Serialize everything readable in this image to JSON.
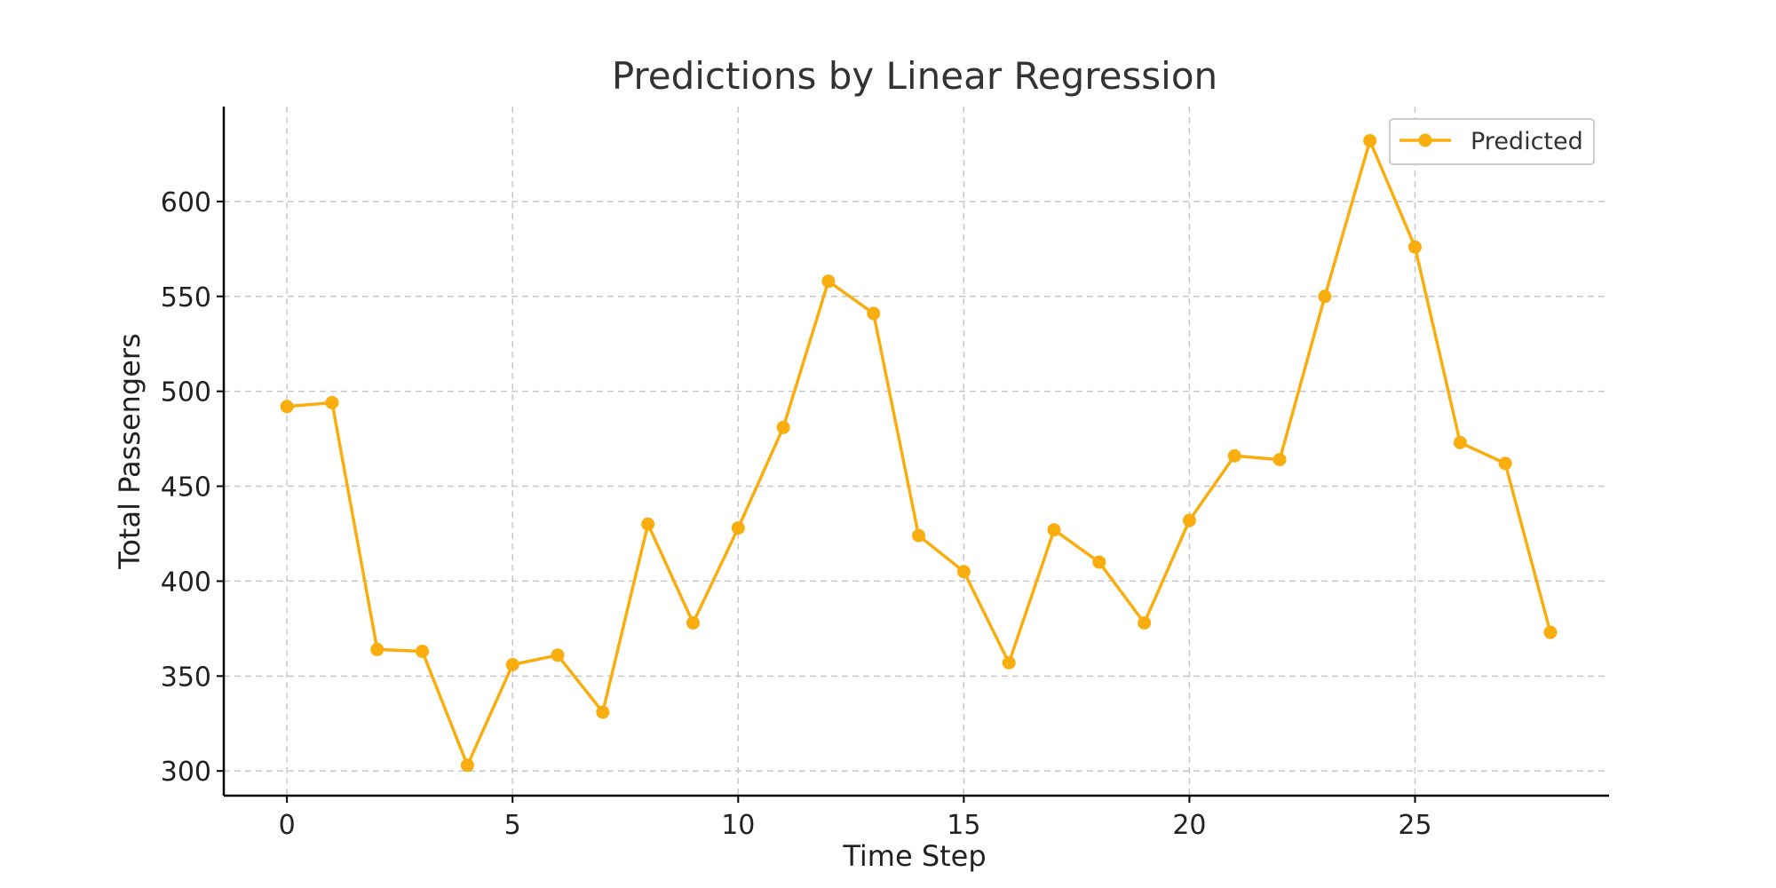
{
  "chart_data": {
    "type": "line",
    "title": "Predictions by Linear Regression",
    "xlabel": "Time Step",
    "ylabel": "Total Passengers",
    "xlim": [
      -1.4,
      29.3
    ],
    "ylim": [
      287,
      650
    ],
    "xticks": [
      0,
      5,
      10,
      15,
      20,
      25
    ],
    "yticks": [
      300,
      350,
      400,
      450,
      500,
      550,
      600
    ],
    "grid": true,
    "legend_position": "top-right",
    "series": [
      {
        "name": "Predicted",
        "color": "#f9ad0e",
        "x": [
          0,
          1,
          2,
          3,
          4,
          5,
          6,
          7,
          8,
          9,
          10,
          11,
          12,
          13,
          14,
          15,
          16,
          17,
          18,
          19,
          20,
          21,
          22,
          23,
          24,
          25,
          26,
          27,
          28
        ],
        "y": [
          492,
          494,
          364,
          363,
          303,
          356,
          361,
          331,
          430,
          378,
          428,
          481,
          558,
          541,
          424,
          405,
          357,
          427,
          410,
          378,
          432,
          466,
          464,
          550,
          632,
          576,
          473,
          462,
          373
        ]
      }
    ]
  }
}
